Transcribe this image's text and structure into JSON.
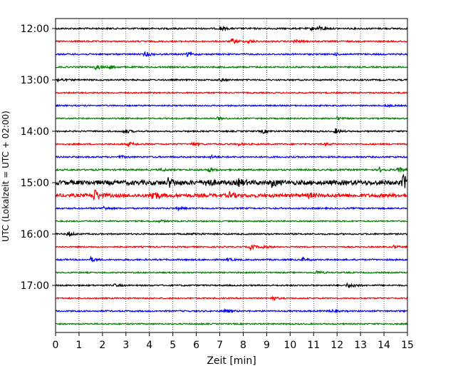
{
  "chart_data": {
    "type": "line",
    "title": "",
    "xlabel": "Zeit  [min]",
    "ylabel": "UTC (Lokalzeit = UTC + 02:00)",
    "xlim": [
      0,
      15
    ],
    "x_ticks": [
      0,
      1,
      2,
      3,
      4,
      5,
      6,
      7,
      8,
      9,
      10,
      11,
      12,
      13,
      14,
      15
    ],
    "y_ticks": [
      "12:00",
      "13:00",
      "14:00",
      "15:00",
      "16:00",
      "17:00"
    ],
    "grid": "vertical dotted lines at each minute",
    "legend": "none",
    "trace_interval_min": 15,
    "traces": [
      {
        "start": "12:00",
        "color": "#000000",
        "noise": 1.0,
        "events": [
          {
            "t": 7.0,
            "amp": 3
          },
          {
            "t": 11.2,
            "amp": 4
          },
          {
            "t": 10.9,
            "amp": 2
          }
        ]
      },
      {
        "start": "12:15",
        "color": "#ff0000",
        "noise": 0.9,
        "events": [
          {
            "t": 7.5,
            "amp": 4
          },
          {
            "t": 8.2,
            "amp": 3
          },
          {
            "t": 10.2,
            "amp": 3
          }
        ]
      },
      {
        "start": "12:30",
        "color": "#0000ff",
        "noise": 0.9,
        "events": [
          {
            "t": 3.8,
            "amp": 4
          },
          {
            "t": 5.6,
            "amp": 3
          },
          {
            "t": 11.9,
            "amp": 2
          }
        ]
      },
      {
        "start": "12:45",
        "color": "#008000",
        "noise": 0.9,
        "events": [
          {
            "t": 1.7,
            "amp": 4
          },
          {
            "t": 2.3,
            "amp": 3
          }
        ]
      },
      {
        "start": "13:00",
        "color": "#000000",
        "noise": 0.9,
        "events": [
          {
            "t": 0.1,
            "amp": 3
          },
          {
            "t": 7.0,
            "amp": 2
          }
        ]
      },
      {
        "start": "13:15",
        "color": "#ff0000",
        "noise": 0.8,
        "events": []
      },
      {
        "start": "13:30",
        "color": "#0000ff",
        "noise": 0.8,
        "events": [
          {
            "t": 14.1,
            "amp": 2
          }
        ]
      },
      {
        "start": "13:45",
        "color": "#008000",
        "noise": 0.8,
        "events": [
          {
            "t": 6.9,
            "amp": 2
          },
          {
            "t": 12.0,
            "amp": 2
          }
        ]
      },
      {
        "start": "14:00",
        "color": "#000000",
        "noise": 0.9,
        "events": [
          {
            "t": 2.9,
            "amp": 4
          },
          {
            "t": 8.8,
            "amp": 3
          },
          {
            "t": 11.9,
            "amp": 4
          }
        ]
      },
      {
        "start": "14:15",
        "color": "#ff0000",
        "noise": 0.9,
        "events": [
          {
            "t": 3.1,
            "amp": 3
          },
          {
            "t": 5.8,
            "amp": 3
          },
          {
            "t": 7.8,
            "amp": 2
          },
          {
            "t": 11.5,
            "amp": 2
          }
        ]
      },
      {
        "start": "14:30",
        "color": "#0000ff",
        "noise": 0.9,
        "events": [
          {
            "t": 2.7,
            "amp": 2
          },
          {
            "t": 6.6,
            "amp": 2
          }
        ]
      },
      {
        "start": "14:45",
        "color": "#008000",
        "noise": 1.0,
        "events": [
          {
            "t": 4.5,
            "amp": 2
          },
          {
            "t": 6.5,
            "amp": 3
          },
          {
            "t": 13.8,
            "amp": 3
          },
          {
            "t": 14.6,
            "amp": 4
          }
        ]
      },
      {
        "start": "15:00",
        "color": "#000000",
        "noise": 2.8,
        "events": [
          {
            "t": 4.8,
            "amp": 6
          },
          {
            "t": 6.4,
            "amp": 7
          },
          {
            "t": 7.8,
            "amp": 5
          },
          {
            "t": 9.2,
            "amp": 5
          },
          {
            "t": 14.8,
            "amp": 12
          }
        ]
      },
      {
        "start": "15:15",
        "color": "#ff0000",
        "noise": 2.2,
        "events": [
          {
            "t": 1.6,
            "amp": 11
          },
          {
            "t": 4.1,
            "amp": 9
          },
          {
            "t": 7.4,
            "amp": 4
          },
          {
            "t": 10.8,
            "amp": 3
          }
        ]
      },
      {
        "start": "15:30",
        "color": "#0000ff",
        "noise": 0.9,
        "events": [
          {
            "t": 2.0,
            "amp": 3
          },
          {
            "t": 5.2,
            "amp": 2
          }
        ]
      },
      {
        "start": "15:45",
        "color": "#008000",
        "noise": 0.8,
        "events": [
          {
            "t": 4.4,
            "amp": 2
          }
        ]
      },
      {
        "start": "16:00",
        "color": "#000000",
        "noise": 0.9,
        "events": [
          {
            "t": 0.5,
            "amp": 4
          },
          {
            "t": 5.9,
            "amp": 2
          }
        ]
      },
      {
        "start": "16:15",
        "color": "#ff0000",
        "noise": 0.8,
        "events": [
          {
            "t": 8.3,
            "amp": 4
          },
          {
            "t": 8.8,
            "amp": 3
          },
          {
            "t": 14.4,
            "amp": 2
          }
        ]
      },
      {
        "start": "16:30",
        "color": "#0000ff",
        "noise": 0.9,
        "events": [
          {
            "t": 1.5,
            "amp": 3
          },
          {
            "t": 7.3,
            "amp": 2
          },
          {
            "t": 10.5,
            "amp": 3
          }
        ]
      },
      {
        "start": "16:45",
        "color": "#008000",
        "noise": 0.8,
        "events": [
          {
            "t": 11.1,
            "amp": 3
          }
        ]
      },
      {
        "start": "17:00",
        "color": "#000000",
        "noise": 0.9,
        "events": [
          {
            "t": 2.5,
            "amp": 2
          },
          {
            "t": 12.4,
            "amp": 3
          },
          {
            "t": 12.7,
            "amp": 2
          }
        ]
      },
      {
        "start": "17:15",
        "color": "#ff0000",
        "noise": 0.8,
        "events": [
          {
            "t": 9.2,
            "amp": 4
          }
        ]
      },
      {
        "start": "17:30",
        "color": "#0000ff",
        "noise": 0.9,
        "events": [
          {
            "t": 7.2,
            "amp": 3
          },
          {
            "t": 11.7,
            "amp": 2
          }
        ]
      },
      {
        "start": "17:45",
        "color": "#008000",
        "noise": 0.8,
        "events": []
      }
    ]
  }
}
